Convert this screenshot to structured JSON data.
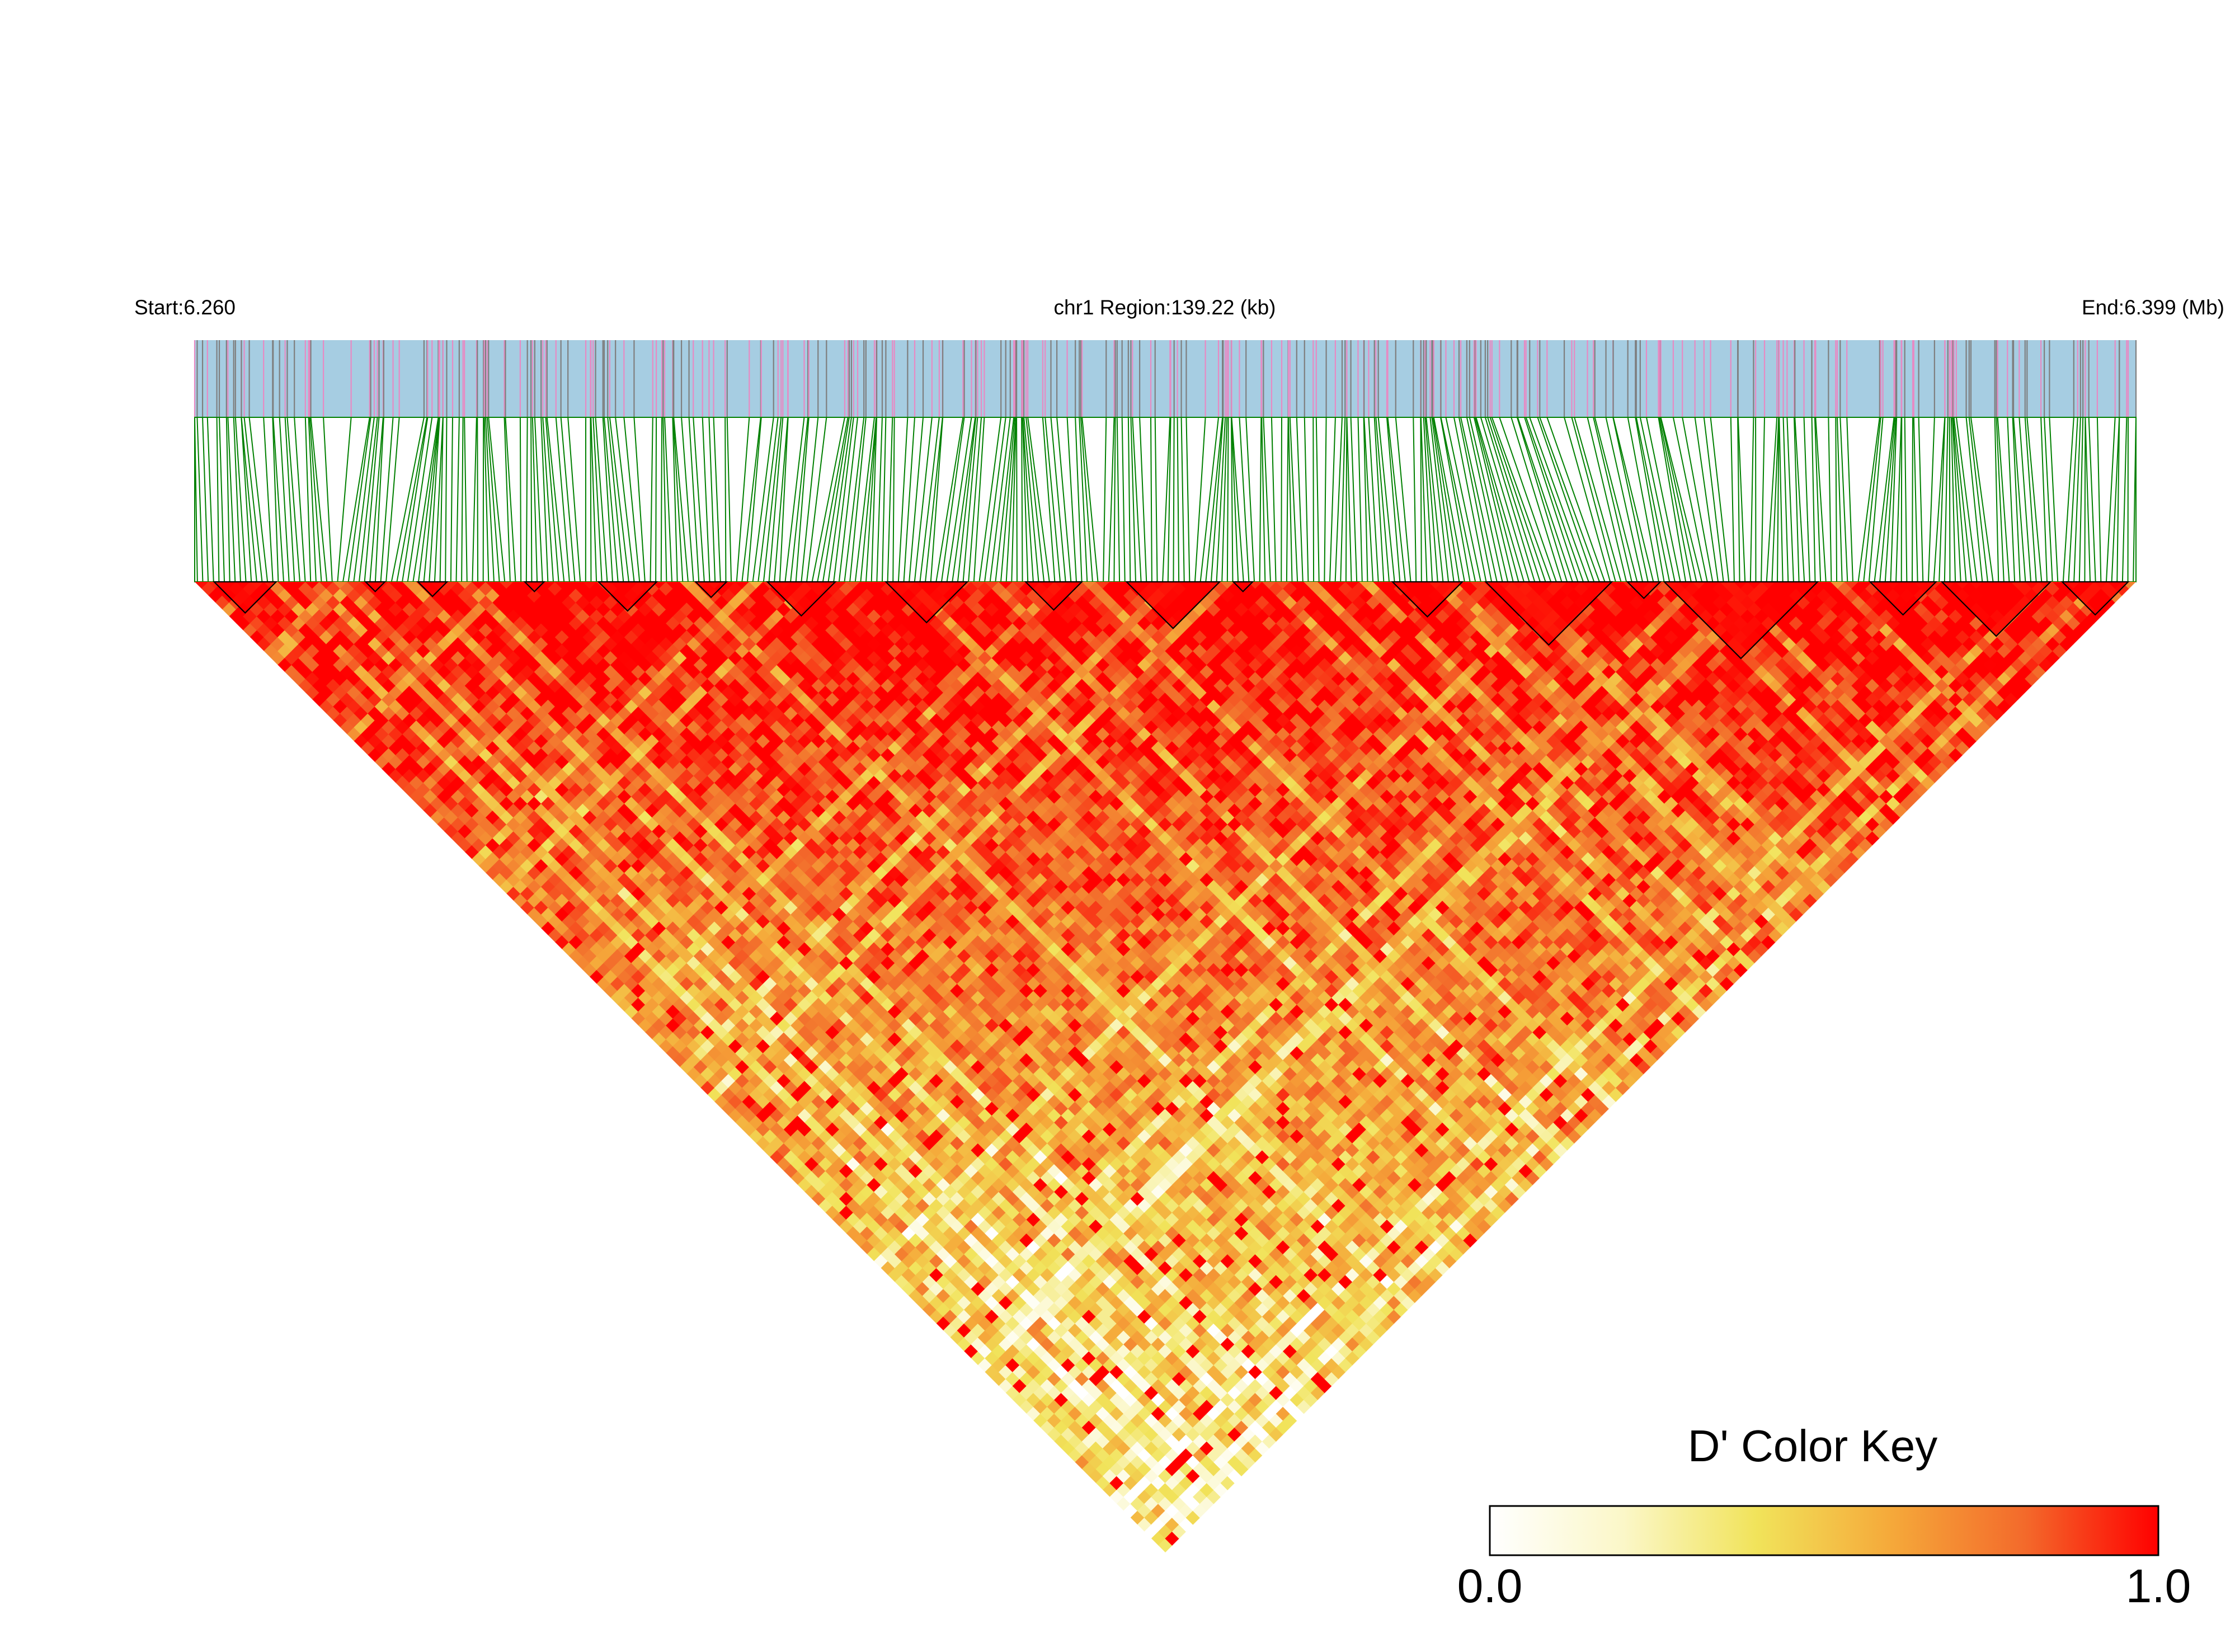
{
  "chart_data": {
    "type": "heatmap",
    "subtype": "linkage-disequilibrium-triangle",
    "header": {
      "start_label": "Start:6.260",
      "region_label": "chr1 Region:139.22 (kb)",
      "end_label": "End:6.399 (Mb)"
    },
    "region": {
      "chromosome": "chr1",
      "start_mb": 6.26,
      "end_mb": 6.399,
      "length_kb": 139.22
    },
    "metric": "D'",
    "color_key": {
      "title": "D' Color Key",
      "min_label": "0.0",
      "max_label": "1.0",
      "min": 0.0,
      "max": 1.0,
      "stops": [
        "#ffffff",
        "#fbf7c8",
        "#f1e35a",
        "#f5a93a",
        "#f36a2b",
        "#ff0000"
      ]
    },
    "colors": {
      "snp_track_background": "#a6cde2",
      "snp_mark_pink": "#e78ac3",
      "snp_mark_gray": "#7f7f7f",
      "connector_lines": "#008000",
      "block_outline": "#000000"
    },
    "ld_blocks": [
      [
        0.01,
        0.042
      ],
      [
        0.088,
        0.098
      ],
      [
        0.115,
        0.13
      ],
      [
        0.17,
        0.18
      ],
      [
        0.208,
        0.238
      ],
      [
        0.258,
        0.274
      ],
      [
        0.295,
        0.33
      ],
      [
        0.356,
        0.398
      ],
      [
        0.428,
        0.457
      ],
      [
        0.48,
        0.528
      ],
      [
        0.535,
        0.545
      ],
      [
        0.617,
        0.653
      ],
      [
        0.665,
        0.73
      ],
      [
        0.738,
        0.755
      ],
      [
        0.757,
        0.836
      ],
      [
        0.863,
        0.897
      ],
      [
        0.9,
        0.956
      ],
      [
        0.962,
        0.996
      ]
    ]
  }
}
